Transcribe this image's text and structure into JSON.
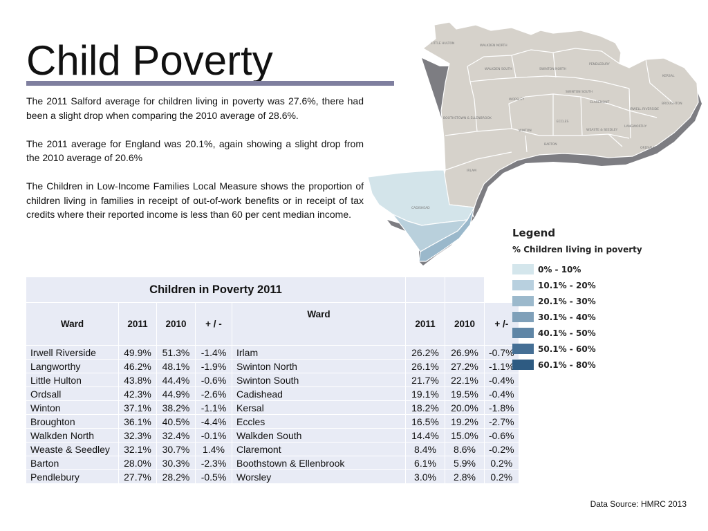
{
  "title": "Child Poverty",
  "intro": [
    "The 2011 Salford average for children living in poverty was 27.6%, there had been a slight drop when comparing the 2010 average of 28.6%.",
    "The 2011 average for England was 20.1%, again showing a slight drop from the 2010 average of 20.6%",
    "The Children in Low-Income Families Local Measure shows the proportion of children living in families in receipt of out-of-work benefits or in receipt of tax credits where their reported income is less than 60 per cent median income."
  ],
  "table": {
    "caption": "Children in Poverty 2011",
    "headers_left": [
      "Ward",
      "2011",
      "2010",
      "+ / -"
    ],
    "headers_right": [
      "Ward",
      "2011",
      "2010",
      "+ /-"
    ],
    "rows": [
      [
        "Irwell Riverside",
        "49.9%",
        "51.3%",
        "-1.4%",
        "Irlam",
        "26.2%",
        "26.9%",
        "-0.7%"
      ],
      [
        "Langworthy",
        "46.2%",
        "48.1%",
        "-1.9%",
        "Swinton North",
        "26.1%",
        "27.2%",
        "-1.1%"
      ],
      [
        "Little Hulton",
        "43.8%",
        "44.4%",
        "-0.6%",
        "Swinton South",
        "21.7%",
        "22.1%",
        "-0.4%"
      ],
      [
        "Ordsall",
        "42.3%",
        "44.9%",
        "-2.6%",
        "Cadishead",
        "19.1%",
        "19.5%",
        "-0.4%"
      ],
      [
        "Winton",
        "37.1%",
        "38.2%",
        "-1.1%",
        "Kersal",
        "18.2%",
        "20.0%",
        "-1.8%"
      ],
      [
        "Broughton",
        "36.1%",
        "40.5%",
        "-4.4%",
        "Eccles",
        "16.5%",
        "19.2%",
        "-2.7%"
      ],
      [
        "Walkden North",
        "32.3%",
        "32.4%",
        "-0.1%",
        "Walkden South",
        "14.4%",
        "15.0%",
        "-0.6%"
      ],
      [
        "Weaste & Seedley",
        "32.1%",
        "30.7%",
        "1.4%",
        "Claremont",
        "8.4%",
        "8.6%",
        "-0.2%"
      ],
      [
        "Barton",
        "28.0%",
        "30.3%",
        "-2.3%",
        "Boothstown & Ellenbrook",
        "6.1%",
        "5.9%",
        "0.2%"
      ],
      [
        "Pendlebury",
        "27.7%",
        "28.2%",
        "-0.5%",
        "Worsley",
        "3.0%",
        "2.8%",
        "0.2%"
      ]
    ]
  },
  "map": {
    "ward_labels": [
      "LITTLE HULTON",
      "WALKDEN NORTH",
      "PENDLEBURY",
      "WALKDEN SOUTH",
      "SWINTON NORTH",
      "KERSAL",
      "SWINTON SOUTH",
      "WORSLEY",
      "CLAREMONT",
      "BROUGHTON",
      "IRWELL RIVERSIDE",
      "BOOTHSTOWN & ELLENBROOK",
      "ECCLES",
      "WEASTE & SEEDLEY",
      "LANGWORTHY",
      "WINTON",
      "BARTON",
      "ORDSALL",
      "IRLAM",
      "CADISHEAD"
    ],
    "colors": {
      "land": "#d6d2cb",
      "shadow": "#7d7d82",
      "irlam_fill": "#d3e4ea",
      "cadishead_fill": "#b9d0dc",
      "south_fill": "#9ab8cb"
    }
  },
  "legend": {
    "title": "Legend",
    "subtitle": "% Children living in poverty",
    "items": [
      {
        "label": "0% - 10%",
        "color": "#d4e6ec"
      },
      {
        "label": "10.1% - 20%",
        "color": "#b8d0df"
      },
      {
        "label": "20.1% - 30%",
        "color": "#9cb9cc"
      },
      {
        "label": "30.1% - 40%",
        "color": "#7fa0b9"
      },
      {
        "label": "40.1% - 50%",
        "color": "#5f86a6"
      },
      {
        "label": "50.1% - 60%",
        "color": "#456f95"
      },
      {
        "label": "60.1% - 80%",
        "color": "#2e5b82"
      }
    ]
  },
  "source": "Data Source: HMRC  2013"
}
